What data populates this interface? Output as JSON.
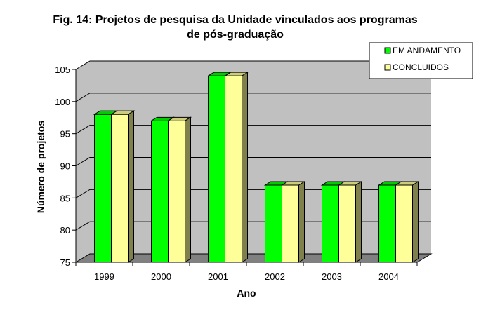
{
  "chart_data": {
    "type": "bar",
    "title_line1": "Fig. 14: Projetos de pesquisa da Unidade vinculados aos programas",
    "title_line2": "de pós-graduação",
    "xlabel": "Ano",
    "ylabel": "Número de projetos",
    "categories": [
      "1999",
      "2000",
      "2001",
      "2002",
      "2003",
      "2004"
    ],
    "series": [
      {
        "name": "EM ANDAMENTO",
        "values": [
          98,
          97,
          104,
          87,
          87,
          87
        ],
        "color": "#00ff00"
      },
      {
        "name": "CONCLUIDOS",
        "values": [
          98,
          97,
          104,
          87,
          87,
          87
        ],
        "color": "#ffff99"
      }
    ],
    "ylim": [
      75,
      105
    ],
    "yticks": [
      75,
      80,
      85,
      90,
      95,
      100,
      105
    ],
    "grid": true,
    "legend": "top-right",
    "wall_color": "#c0c0c0",
    "floor_color": "#808080"
  }
}
